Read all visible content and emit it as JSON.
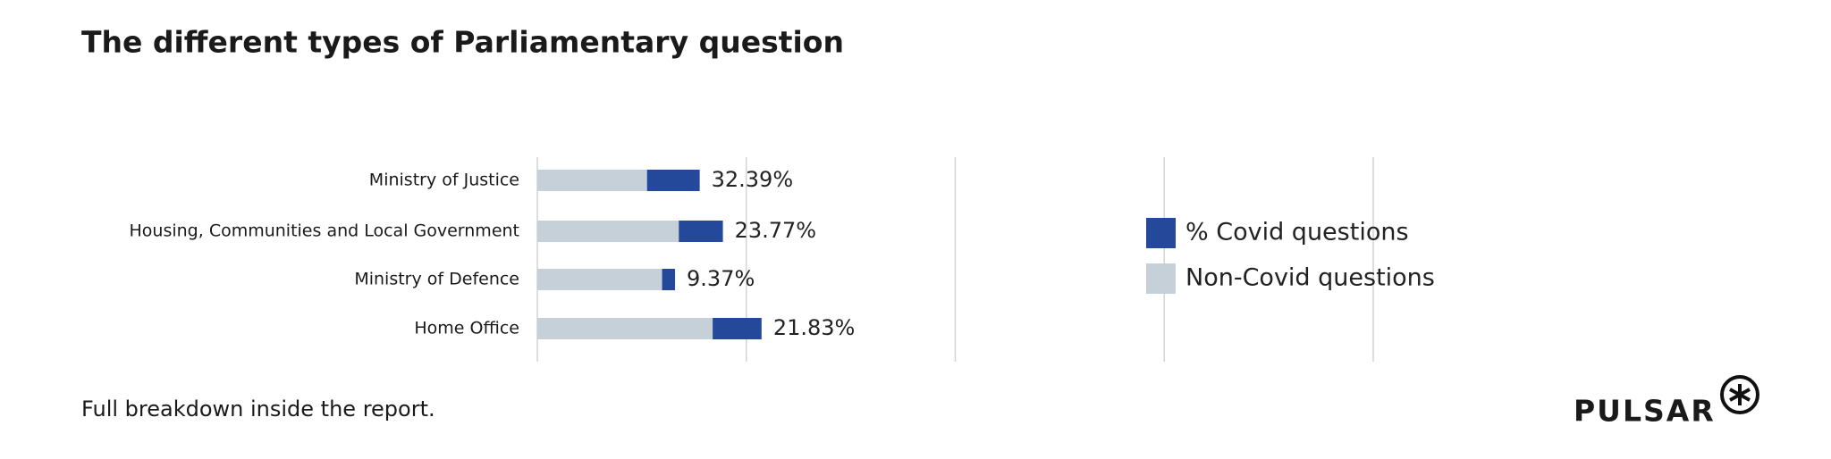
{
  "chart_data": {
    "type": "stacked-barh",
    "title": "The different types of Parliamentary question",
    "categories": [
      "Ministry of Justice",
      "Housing, Communities and Local Government",
      "Ministry of Defence",
      "Home Office"
    ],
    "series": [
      {
        "name": "Non-Covid questions",
        "color": "#c5d0d8",
        "values": [
          52.5,
          67.7,
          59.7,
          83.9
        ]
      },
      {
        "name": "% Covid questions",
        "color": "#24489a",
        "values": [
          25.2,
          21.1,
          6.2,
          23.4
        ]
      }
    ],
    "annotations": [
      "32.39%",
      "23.77%",
      "9.37%",
      "21.83%"
    ],
    "xlim": [
      0,
      400
    ],
    "xticks": [
      0,
      100,
      200,
      300,
      400
    ],
    "grid": true,
    "footer": "Full breakdown inside the report.",
    "brand": "PULSAR"
  }
}
